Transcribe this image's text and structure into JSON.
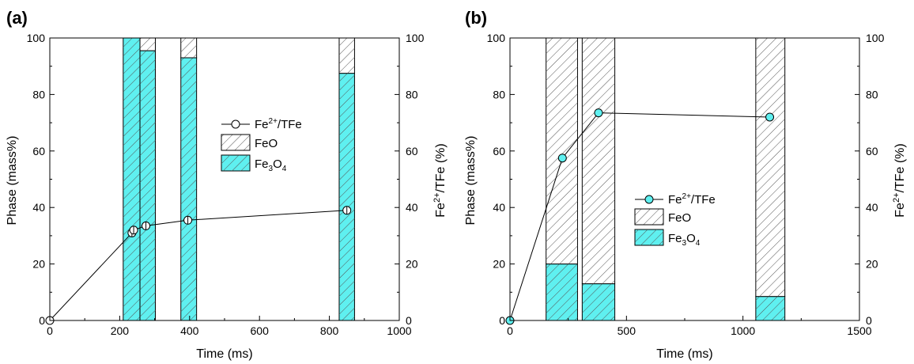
{
  "colors": {
    "fe3o4": "#5ff0f0",
    "feo": "#ffffff",
    "hatch": "#555555",
    "line": "#000000",
    "marker_b": "#5ff0f0",
    "marker_a": "#ffffff"
  },
  "chart_data": [
    {
      "type": "bar",
      "panel_label": "(a)",
      "xlabel": "Time (ms)",
      "ylabel": "Phase (mass%)",
      "y2label_base": "Fe",
      "y2label_sup": "2+",
      "y2label_rest": "/TFe (%)",
      "xlim": [
        0,
        1000
      ],
      "ylim": [
        0,
        100
      ],
      "y2lim": [
        0,
        100
      ],
      "xticks": [
        0,
        200,
        400,
        600,
        800,
        1000
      ],
      "yticks": [
        0,
        20,
        40,
        60,
        80,
        100
      ],
      "y2ticks": [
        0,
        20,
        40,
        60,
        80,
        100
      ],
      "bars": [
        {
          "x_start": 210,
          "x_end": 258,
          "fe3o4": 100,
          "feo": 0
        },
        {
          "x_start": 258,
          "x_end": 302,
          "fe3o4": 95.5,
          "feo": 4.5
        },
        {
          "x_start": 375,
          "x_end": 420,
          "fe3o4": 93,
          "feo": 7
        },
        {
          "x_start": 828,
          "x_end": 872,
          "fe3o4": 87.5,
          "feo": 12.5
        }
      ],
      "line_series": {
        "x": [
          0,
          235,
          240,
          275,
          395,
          850
        ],
        "y": [
          0,
          31,
          32,
          33.5,
          35.5,
          39
        ]
      },
      "legend": {
        "placement": "center",
        "items": [
          {
            "kind": "line",
            "base": "Fe",
            "sup": "2+",
            "rest": "/TFe"
          },
          {
            "kind": "feo",
            "label": "FeO"
          },
          {
            "kind": "fe3o4",
            "base": "Fe",
            "sub1": "3",
            "mid": "O",
            "sub2": "4"
          }
        ]
      }
    },
    {
      "type": "bar",
      "panel_label": "(b)",
      "xlabel": "Time (ms)",
      "ylabel": "Phase (mass%)",
      "y2label_base": "Fe",
      "y2label_sup": "2+",
      "y2label_rest": "/TFe (%)",
      "xlim": [
        0,
        1500
      ],
      "ylim": [
        0,
        100
      ],
      "y2lim": [
        0,
        100
      ],
      "xticks": [
        0,
        500,
        1000,
        1500
      ],
      "yticks": [
        0,
        20,
        40,
        60,
        80,
        100
      ],
      "y2ticks": [
        0,
        20,
        40,
        60,
        80,
        100
      ],
      "bars": [
        {
          "x_start": 155,
          "x_end": 290,
          "fe3o4": 20,
          "feo": 80
        },
        {
          "x_start": 310,
          "x_end": 450,
          "fe3o4": 13,
          "feo": 87
        },
        {
          "x_start": 1055,
          "x_end": 1180,
          "fe3o4": 8.5,
          "feo": 91.5
        }
      ],
      "line_series": {
        "x": [
          0,
          225,
          380,
          1115
        ],
        "y": [
          0,
          57.5,
          73.5,
          72
        ]
      },
      "legend": {
        "placement": "lower center",
        "items": [
          {
            "kind": "line",
            "base": "Fe",
            "sup": "2+",
            "rest": "/TFe"
          },
          {
            "kind": "feo",
            "label": "FeO"
          },
          {
            "kind": "fe3o4",
            "base": "Fe",
            "sub1": "3",
            "mid": "O",
            "sub2": "4"
          }
        ]
      }
    }
  ]
}
